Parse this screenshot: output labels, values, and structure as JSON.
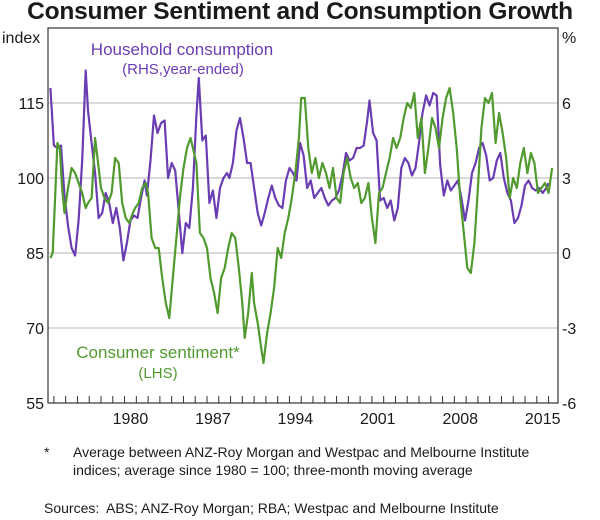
{
  "chart_data": {
    "type": "line",
    "title": "Consumer Sentiment and Consumption Growth",
    "left_axis": {
      "label": "index",
      "ticks": [
        55,
        70,
        85,
        100,
        115
      ],
      "range": [
        55,
        130
      ]
    },
    "right_axis": {
      "label": "%",
      "ticks": [
        -6,
        -3,
        0,
        3,
        6
      ],
      "range": [
        -6,
        9
      ]
    },
    "x_axis": {
      "tick_labels": [
        "1980",
        "1987",
        "1994",
        "2001",
        "2008",
        "2015"
      ],
      "range": [
        1973.5,
        2016.8
      ],
      "minor_ticks": "yearly"
    },
    "grid": true,
    "series": [
      {
        "name": "Household consumption",
        "sublabel": "(RHS,year-ended)",
        "axis": "right",
        "color": "#6a3db3",
        "points": [
          [
            1973.7,
            6.6
          ],
          [
            1974.0,
            4.3
          ],
          [
            1974.3,
            4.2
          ],
          [
            1974.6,
            4.3
          ],
          [
            1974.9,
            2.3
          ],
          [
            1975.2,
            1.1
          ],
          [
            1975.5,
            0.2
          ],
          [
            1975.8,
            -0.1
          ],
          [
            1976.1,
            1.3
          ],
          [
            1976.4,
            3.7
          ],
          [
            1976.7,
            7.3
          ],
          [
            1976.9,
            5.7
          ],
          [
            1977.2,
            4.4
          ],
          [
            1977.5,
            3.2
          ],
          [
            1977.8,
            1.4
          ],
          [
            1978.1,
            1.6
          ],
          [
            1978.4,
            2.4
          ],
          [
            1978.7,
            2.0
          ],
          [
            1979.0,
            1.2
          ],
          [
            1979.3,
            1.8
          ],
          [
            1979.6,
            1.0
          ],
          [
            1979.9,
            -0.3
          ],
          [
            1980.2,
            0.4
          ],
          [
            1980.5,
            1.3
          ],
          [
            1980.8,
            1.5
          ],
          [
            1981.1,
            1.4
          ],
          [
            1981.4,
            2.2
          ],
          [
            1981.7,
            2.9
          ],
          [
            1981.9,
            2.3
          ],
          [
            1982.2,
            3.7
          ],
          [
            1982.5,
            5.5
          ],
          [
            1982.8,
            4.8
          ],
          [
            1983.1,
            5.2
          ],
          [
            1983.4,
            5.3
          ],
          [
            1983.7,
            3.0
          ],
          [
            1984.0,
            3.6
          ],
          [
            1984.3,
            3.3
          ],
          [
            1984.6,
            1.7
          ],
          [
            1984.9,
            0.0
          ],
          [
            1985.2,
            1.2
          ],
          [
            1985.5,
            1.0
          ],
          [
            1985.8,
            2.6
          ],
          [
            1986.1,
            5.5
          ],
          [
            1986.3,
            7.0
          ],
          [
            1986.6,
            4.5
          ],
          [
            1986.9,
            4.7
          ],
          [
            1987.2,
            2.0
          ],
          [
            1987.5,
            2.5
          ],
          [
            1987.8,
            1.4
          ],
          [
            1988.1,
            2.6
          ],
          [
            1988.4,
            3.0
          ],
          [
            1988.7,
            3.2
          ],
          [
            1988.9,
            3.0
          ],
          [
            1989.2,
            3.6
          ],
          [
            1989.5,
            4.9
          ],
          [
            1989.8,
            5.4
          ],
          [
            1990.1,
            4.6
          ],
          [
            1990.4,
            3.6
          ],
          [
            1990.7,
            3.6
          ],
          [
            1991.0,
            2.6
          ],
          [
            1991.3,
            1.6
          ],
          [
            1991.6,
            1.1
          ],
          [
            1991.9,
            1.6
          ],
          [
            1992.2,
            2.2
          ],
          [
            1992.5,
            2.7
          ],
          [
            1992.8,
            2.2
          ],
          [
            1993.1,
            1.9
          ],
          [
            1993.4,
            1.8
          ],
          [
            1993.7,
            2.9
          ],
          [
            1994.0,
            3.4
          ],
          [
            1994.3,
            3.2
          ],
          [
            1994.6,
            2.9
          ],
          [
            1994.9,
            4.4
          ],
          [
            1995.2,
            3.9
          ],
          [
            1995.5,
            2.6
          ],
          [
            1995.8,
            2.9
          ],
          [
            1996.1,
            2.2
          ],
          [
            1996.4,
            2.4
          ],
          [
            1996.7,
            2.6
          ],
          [
            1997.0,
            2.2
          ],
          [
            1997.3,
            1.9
          ],
          [
            1997.6,
            2.1
          ],
          [
            1997.9,
            2.2
          ],
          [
            1998.2,
            2.5
          ],
          [
            1998.5,
            3.1
          ],
          [
            1998.8,
            4.0
          ],
          [
            1999.1,
            3.7
          ],
          [
            1999.4,
            3.8
          ],
          [
            1999.7,
            4.2
          ],
          [
            2000.0,
            4.2
          ],
          [
            2000.3,
            4.3
          ],
          [
            2000.6,
            5.3
          ],
          [
            2000.8,
            6.1
          ],
          [
            2001.1,
            4.8
          ],
          [
            2001.4,
            4.5
          ],
          [
            2001.7,
            2.1
          ],
          [
            2002.0,
            2.2
          ],
          [
            2002.3,
            1.8
          ],
          [
            2002.6,
            2.1
          ],
          [
            2002.9,
            1.3
          ],
          [
            2003.2,
            1.8
          ],
          [
            2003.5,
            3.4
          ],
          [
            2003.8,
            3.8
          ],
          [
            2004.1,
            3.6
          ],
          [
            2004.4,
            3.1
          ],
          [
            2004.7,
            3.4
          ],
          [
            2005.0,
            4.4
          ],
          [
            2005.3,
            5.6
          ],
          [
            2005.6,
            6.3
          ],
          [
            2005.9,
            5.9
          ],
          [
            2006.2,
            6.4
          ],
          [
            2006.5,
            6.3
          ],
          [
            2006.8,
            3.5
          ],
          [
            2007.1,
            2.3
          ],
          [
            2007.4,
            2.9
          ],
          [
            2007.7,
            2.5
          ],
          [
            2008.0,
            2.7
          ],
          [
            2008.3,
            2.9
          ],
          [
            2008.6,
            2.2
          ],
          [
            2008.9,
            1.3
          ],
          [
            2009.2,
            2.1
          ],
          [
            2009.5,
            3.2
          ],
          [
            2009.8,
            3.6
          ],
          [
            2010.1,
            4.2
          ],
          [
            2010.4,
            4.4
          ],
          [
            2010.7,
            3.9
          ],
          [
            2011.0,
            2.9
          ],
          [
            2011.3,
            3.0
          ],
          [
            2011.6,
            3.7
          ],
          [
            2011.9,
            4.0
          ],
          [
            2012.2,
            3.0
          ],
          [
            2012.5,
            2.4
          ],
          [
            2012.8,
            2.1
          ],
          [
            2013.1,
            1.2
          ],
          [
            2013.4,
            1.4
          ],
          [
            2013.7,
            1.9
          ],
          [
            2014.0,
            2.7
          ],
          [
            2014.3,
            2.9
          ],
          [
            2014.6,
            2.6
          ],
          [
            2014.9,
            2.5
          ],
          [
            2015.2,
            2.6
          ],
          [
            2015.5,
            2.4
          ],
          [
            2015.8,
            2.6
          ],
          [
            2016.0,
            2.8
          ]
        ]
      },
      {
        "name": "Consumer sentiment*",
        "sublabel": "(LHS)",
        "axis": "left",
        "color": "#519a2f",
        "points": [
          [
            1973.7,
            84
          ],
          [
            1973.9,
            85
          ],
          [
            1974.1,
            96
          ],
          [
            1974.3,
            107
          ],
          [
            1974.5,
            106
          ],
          [
            1974.7,
            98
          ],
          [
            1974.9,
            93
          ],
          [
            1975.2,
            98
          ],
          [
            1975.5,
            102
          ],
          [
            1975.8,
            101
          ],
          [
            1976.1,
            99
          ],
          [
            1976.4,
            97
          ],
          [
            1976.7,
            94
          ],
          [
            1976.9,
            95
          ],
          [
            1977.2,
            96
          ],
          [
            1977.5,
            108
          ],
          [
            1977.7,
            104
          ],
          [
            1978.0,
            98
          ],
          [
            1978.3,
            96
          ],
          [
            1978.6,
            95
          ],
          [
            1978.9,
            97
          ],
          [
            1979.2,
            104
          ],
          [
            1979.5,
            103
          ],
          [
            1979.8,
            95
          ],
          [
            1980.1,
            92
          ],
          [
            1980.4,
            91
          ],
          [
            1980.7,
            93
          ],
          [
            1980.9,
            94
          ],
          [
            1981.2,
            95
          ],
          [
            1981.5,
            98
          ],
          [
            1981.8,
            99
          ],
          [
            1982.0,
            97
          ],
          [
            1982.3,
            88
          ],
          [
            1982.6,
            86
          ],
          [
            1982.9,
            86
          ],
          [
            1983.2,
            80
          ],
          [
            1983.5,
            75
          ],
          [
            1983.8,
            72
          ],
          [
            1984.1,
            80
          ],
          [
            1984.4,
            88
          ],
          [
            1984.7,
            96
          ],
          [
            1985.0,
            102
          ],
          [
            1985.3,
            106
          ],
          [
            1985.6,
            108
          ],
          [
            1985.8,
            106
          ],
          [
            1986.1,
            103
          ],
          [
            1986.4,
            89
          ],
          [
            1986.7,
            88
          ],
          [
            1987.0,
            86
          ],
          [
            1987.3,
            80
          ],
          [
            1987.6,
            77
          ],
          [
            1987.9,
            73
          ],
          [
            1988.2,
            80
          ],
          [
            1988.5,
            82
          ],
          [
            1988.8,
            86
          ],
          [
            1989.1,
            89
          ],
          [
            1989.4,
            88
          ],
          [
            1989.7,
            82
          ],
          [
            1990.0,
            75
          ],
          [
            1990.2,
            68
          ],
          [
            1990.5,
            73
          ],
          [
            1990.8,
            81
          ],
          [
            1991.0,
            75
          ],
          [
            1991.3,
            71
          ],
          [
            1991.6,
            66
          ],
          [
            1991.8,
            63
          ],
          [
            1992.1,
            69
          ],
          [
            1992.4,
            73
          ],
          [
            1992.7,
            78
          ],
          [
            1993.0,
            86
          ],
          [
            1993.3,
            84
          ],
          [
            1993.6,
            89
          ],
          [
            1993.9,
            92
          ],
          [
            1994.2,
            96
          ],
          [
            1994.5,
            101
          ],
          [
            1994.8,
            108
          ],
          [
            1995.0,
            116
          ],
          [
            1995.3,
            116
          ],
          [
            1995.6,
            106
          ],
          [
            1995.9,
            101
          ],
          [
            1996.2,
            104
          ],
          [
            1996.5,
            100
          ],
          [
            1996.8,
            103
          ],
          [
            1997.1,
            101
          ],
          [
            1997.4,
            98
          ],
          [
            1997.7,
            102
          ],
          [
            1998.0,
            96
          ],
          [
            1998.3,
            95
          ],
          [
            1998.6,
            101
          ],
          [
            1998.9,
            104
          ],
          [
            1999.2,
            100
          ],
          [
            1999.5,
            98
          ],
          [
            1999.8,
            99
          ],
          [
            2000.1,
            95
          ],
          [
            2000.4,
            96
          ],
          [
            2000.7,
            99
          ],
          [
            2001.0,
            92
          ],
          [
            2001.3,
            87
          ],
          [
            2001.6,
            97
          ],
          [
            2001.9,
            98
          ],
          [
            2002.2,
            101
          ],
          [
            2002.5,
            104
          ],
          [
            2002.8,
            108
          ],
          [
            2003.1,
            106
          ],
          [
            2003.4,
            108
          ],
          [
            2003.7,
            112
          ],
          [
            2004.0,
            115
          ],
          [
            2004.3,
            114
          ],
          [
            2004.6,
            117
          ],
          [
            2004.9,
            108
          ],
          [
            2005.2,
            112
          ],
          [
            2005.5,
            101
          ],
          [
            2005.8,
            106
          ],
          [
            2006.1,
            112
          ],
          [
            2006.4,
            110
          ],
          [
            2006.7,
            106
          ],
          [
            2007.0,
            112
          ],
          [
            2007.3,
            116
          ],
          [
            2007.6,
            118
          ],
          [
            2007.9,
            113
          ],
          [
            2008.2,
            106
          ],
          [
            2008.5,
            96
          ],
          [
            2008.8,
            89
          ],
          [
            2009.1,
            82
          ],
          [
            2009.4,
            81
          ],
          [
            2009.7,
            87
          ],
          [
            2010.0,
            98
          ],
          [
            2010.3,
            110
          ],
          [
            2010.6,
            116
          ],
          [
            2010.9,
            115
          ],
          [
            2011.2,
            117
          ],
          [
            2011.5,
            107
          ],
          [
            2011.8,
            113
          ],
          [
            2012.1,
            109
          ],
          [
            2012.4,
            104
          ],
          [
            2012.7,
            96
          ],
          [
            2013.0,
            100
          ],
          [
            2013.3,
            98
          ],
          [
            2013.6,
            103
          ],
          [
            2013.9,
            106
          ],
          [
            2014.2,
            101
          ],
          [
            2014.5,
            105
          ],
          [
            2014.8,
            103
          ],
          [
            2015.1,
            97
          ],
          [
            2015.4,
            98
          ],
          [
            2015.7,
            99
          ],
          [
            2016.0,
            97
          ],
          [
            2016.3,
            102
          ]
        ]
      }
    ],
    "annotations": [
      {
        "text": "Household consumption",
        "color": "#6a3db3"
      },
      {
        "text": "(RHS,year-ended)",
        "color": "#6a3db3"
      },
      {
        "text": "Consumer sentiment*",
        "color": "#519a2f"
      },
      {
        "text": "(LHS)",
        "color": "#519a2f"
      }
    ]
  },
  "labels": {
    "title": "Consumer Sentiment and Consumption Growth",
    "left_unit": "index",
    "right_unit": "%",
    "hh_line1": "Household consumption",
    "hh_line2": "(RHS,year-ended)",
    "cs_line1": "Consumer sentiment*",
    "cs_line2": "(LHS)"
  },
  "footnotes": {
    "star": "*",
    "note": "Average between ANZ-Roy Morgan and Westpac and Melbourne Institute indices; average since 1980 = 100; three-month moving average",
    "sources_label": "Sources:",
    "sources": "ABS; ANZ-Roy Morgan; RBA; Westpac and Melbourne Institute"
  }
}
